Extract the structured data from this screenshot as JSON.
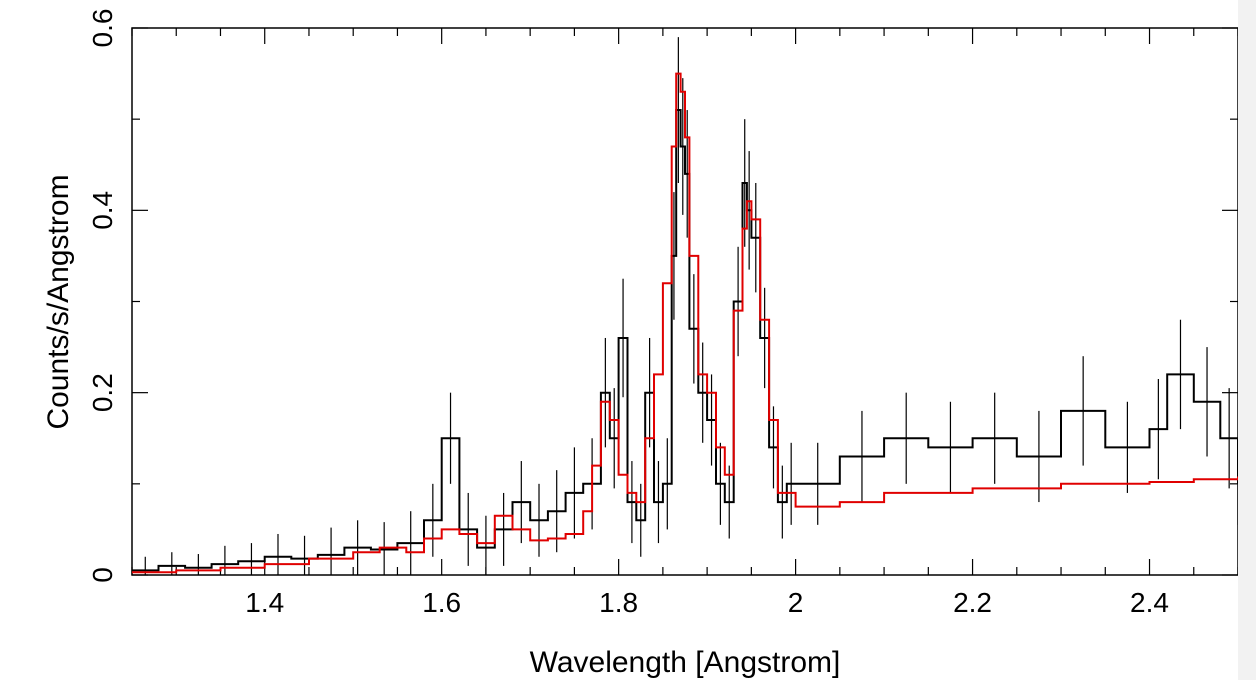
{
  "chart_data": {
    "type": "line",
    "xlabel": "Wavelength [Angstrom]",
    "ylabel": "Counts/s/Angstrom",
    "xlim": [
      1.25,
      2.5
    ],
    "ylim": [
      0,
      0.6
    ],
    "x_ticks": [
      1.4,
      1.6,
      1.8,
      2.0,
      2.2,
      2.4
    ],
    "x_tick_labels": [
      "1.4",
      "1.6",
      "1.8",
      "2",
      "2.2",
      "2.4"
    ],
    "y_ticks": [
      0,
      0.2,
      0.4,
      0.6
    ],
    "y_tick_labels": [
      "0",
      "0.2",
      "0.4",
      "0.6"
    ],
    "grid": false,
    "series": [
      {
        "color": "#000000",
        "style": "histogram-with-error-bars",
        "x": [
          1.25,
          1.28,
          1.31,
          1.34,
          1.37,
          1.4,
          1.43,
          1.46,
          1.49,
          1.52,
          1.55,
          1.58,
          1.6,
          1.62,
          1.64,
          1.66,
          1.68,
          1.7,
          1.72,
          1.74,
          1.76,
          1.78,
          1.79,
          1.8,
          1.81,
          1.82,
          1.83,
          1.84,
          1.85,
          1.86,
          1.865,
          1.87,
          1.875,
          1.88,
          1.89,
          1.9,
          1.91,
          1.92,
          1.93,
          1.94,
          1.945,
          1.95,
          1.96,
          1.97,
          1.98,
          1.99,
          2.0,
          2.05,
          2.1,
          2.15,
          2.2,
          2.25,
          2.3,
          2.35,
          2.4,
          2.42,
          2.45,
          2.48,
          2.5
        ],
        "y": [
          0.005,
          0.01,
          0.008,
          0.012,
          0.015,
          0.02,
          0.018,
          0.022,
          0.03,
          0.028,
          0.035,
          0.06,
          0.15,
          0.05,
          0.03,
          0.05,
          0.08,
          0.06,
          0.07,
          0.09,
          0.1,
          0.2,
          0.15,
          0.26,
          0.08,
          0.06,
          0.2,
          0.08,
          0.1,
          0.35,
          0.51,
          0.47,
          0.44,
          0.27,
          0.2,
          0.17,
          0.1,
          0.08,
          0.3,
          0.43,
          0.4,
          0.37,
          0.26,
          0.14,
          0.08,
          0.1,
          0.1,
          0.13,
          0.15,
          0.14,
          0.15,
          0.13,
          0.18,
          0.14,
          0.16,
          0.22,
          0.19,
          0.15,
          0.1
        ],
        "errors": [
          0.015,
          0.015,
          0.015,
          0.02,
          0.02,
          0.025,
          0.025,
          0.03,
          0.03,
          0.03,
          0.035,
          0.04,
          0.05,
          0.04,
          0.035,
          0.04,
          0.045,
          0.04,
          0.045,
          0.05,
          0.05,
          0.06,
          0.055,
          0.065,
          0.045,
          0.04,
          0.06,
          0.045,
          0.05,
          0.07,
          0.08,
          0.075,
          0.07,
          0.06,
          0.055,
          0.05,
          0.045,
          0.04,
          0.06,
          0.07,
          0.065,
          0.06,
          0.055,
          0.045,
          0.04,
          0.045,
          0.045,
          0.05,
          0.05,
          0.05,
          0.05,
          0.05,
          0.06,
          0.05,
          0.055,
          0.06,
          0.06,
          0.055,
          0.045
        ]
      },
      {
        "color": "#e00000",
        "style": "model-step",
        "x": [
          1.25,
          1.3,
          1.35,
          1.4,
          1.45,
          1.5,
          1.53,
          1.56,
          1.58,
          1.6,
          1.62,
          1.64,
          1.66,
          1.68,
          1.7,
          1.72,
          1.74,
          1.76,
          1.77,
          1.78,
          1.79,
          1.8,
          1.81,
          1.82,
          1.83,
          1.84,
          1.85,
          1.86,
          1.865,
          1.87,
          1.875,
          1.88,
          1.89,
          1.9,
          1.91,
          1.92,
          1.93,
          1.94,
          1.945,
          1.95,
          1.96,
          1.97,
          1.98,
          2.0,
          2.05,
          2.1,
          2.15,
          2.2,
          2.25,
          2.3,
          2.35,
          2.4,
          2.45,
          2.5
        ],
        "y": [
          0.003,
          0.005,
          0.008,
          0.012,
          0.018,
          0.025,
          0.03,
          0.025,
          0.04,
          0.05,
          0.045,
          0.035,
          0.065,
          0.05,
          0.038,
          0.04,
          0.045,
          0.07,
          0.12,
          0.19,
          0.17,
          0.11,
          0.09,
          0.08,
          0.15,
          0.22,
          0.32,
          0.47,
          0.55,
          0.53,
          0.48,
          0.35,
          0.22,
          0.2,
          0.14,
          0.11,
          0.29,
          0.38,
          0.41,
          0.39,
          0.28,
          0.17,
          0.09,
          0.075,
          0.08,
          0.09,
          0.09,
          0.095,
          0.095,
          0.1,
          0.1,
          0.102,
          0.105,
          0.108
        ]
      }
    ]
  }
}
